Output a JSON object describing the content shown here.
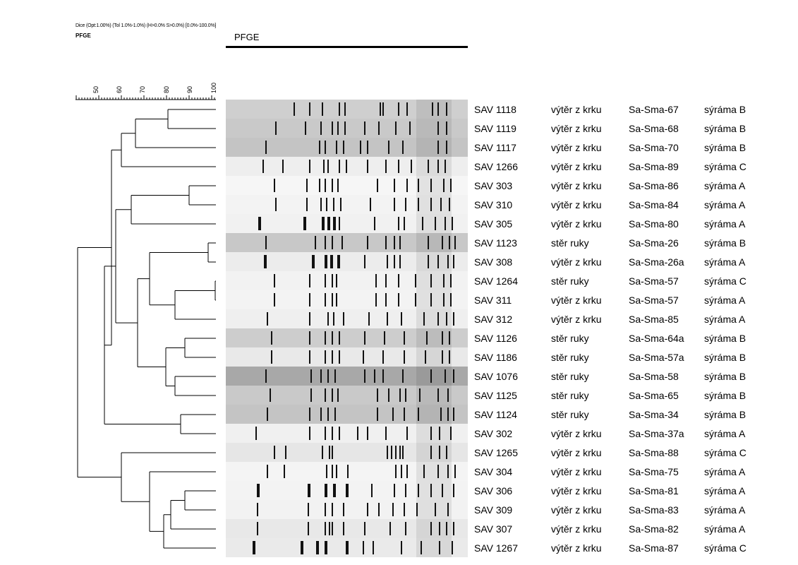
{
  "header": {
    "settings": "Dice (Opt:1.00%) (Tol 1.0%-1.0%) (H>0.0% S>0.0%) [0.0%-100.0%]",
    "experiment": "PFGE",
    "column_title": "PFGE"
  },
  "scale": {
    "ticks": [
      "50",
      "60",
      "70",
      "80",
      "90",
      "100"
    ]
  },
  "isolates": [
    {
      "id": "SAV 1118",
      "source": "výtěr z krku",
      "pattern": "Sa-Sma-67",
      "farm": "sýráma B"
    },
    {
      "id": "SAV 1119",
      "source": "výtěr z krku",
      "pattern": "Sa-Sma-68",
      "farm": "sýráma B"
    },
    {
      "id": "SAV 1117",
      "source": "výtěr z krku",
      "pattern": "Sa-Sma-70",
      "farm": "sýráma B"
    },
    {
      "id": "SAV 1266",
      "source": "výtěr z krku",
      "pattern": "Sa-Sma-89",
      "farm": "sýráma C"
    },
    {
      "id": "SAV 303",
      "source": "výtěr z krku",
      "pattern": "Sa-Sma-86",
      "farm": "sýráma A"
    },
    {
      "id": "SAV 310",
      "source": "výtěr z krku",
      "pattern": "Sa-Sma-84",
      "farm": "sýráma A"
    },
    {
      "id": "SAV 305",
      "source": "výtěr z krku",
      "pattern": "Sa-Sma-80",
      "farm": "sýráma A"
    },
    {
      "id": "SAV 1123",
      "source": "stěr ruky",
      "pattern": "Sa-Sma-26",
      "farm": "sýráma B"
    },
    {
      "id": "SAV 308",
      "source": "výtěr z krku",
      "pattern": "Sa-Sma-26a",
      "farm": "sýráma A"
    },
    {
      "id": "SAV 1264",
      "source": "stěr ruky",
      "pattern": "Sa-Sma-57",
      "farm": "sýráma C"
    },
    {
      "id": "SAV 311",
      "source": "výtěr z krku",
      "pattern": "Sa-Sma-57",
      "farm": "sýráma A"
    },
    {
      "id": "SAV 312",
      "source": "výtěr z krku",
      "pattern": "Sa-Sma-85",
      "farm": "sýráma A"
    },
    {
      "id": "SAV 1126",
      "source": "stěr ruky",
      "pattern": "Sa-Sma-64a",
      "farm": "sýráma B"
    },
    {
      "id": "SAV 1186",
      "source": "stěr ruky",
      "pattern": "Sa-Sma-57a",
      "farm": "sýráma B"
    },
    {
      "id": "SAV 1076",
      "source": "stěr ruky",
      "pattern": "Sa-Sma-58",
      "farm": "sýráma B"
    },
    {
      "id": "SAV 1125",
      "source": "stěr ruky",
      "pattern": "Sa-Sma-65",
      "farm": "sýráma B"
    },
    {
      "id": "SAV 1124",
      "source": "stěr ruky",
      "pattern": "Sa-Sma-34",
      "farm": "sýráma B"
    },
    {
      "id": "SAV 302",
      "source": "výtěr z krku",
      "pattern": "Sa-Sma-37a",
      "farm": "sýráma A"
    },
    {
      "id": "SAV 1265",
      "source": "výtěr z krku",
      "pattern": "Sa-Sma-88",
      "farm": "sýráma C"
    },
    {
      "id": "SAV 304",
      "source": "výtěr z krku",
      "pattern": "Sa-Sma-75",
      "farm": "sýráma A"
    },
    {
      "id": "SAV 306",
      "source": "výtěr z krku",
      "pattern": "Sa-Sma-81",
      "farm": "sýráma A"
    },
    {
      "id": "SAV 309",
      "source": "výtěr z krku",
      "pattern": "Sa-Sma-83",
      "farm": "sýráma A"
    },
    {
      "id": "SAV 307",
      "source": "výtěr z krku",
      "pattern": "Sa-Sma-82",
      "farm": "sýráma A"
    },
    {
      "id": "SAV 1267",
      "source": "výtěr z krku",
      "pattern": "Sa-Sma-87",
      "farm": "sýráma C"
    }
  ]
}
